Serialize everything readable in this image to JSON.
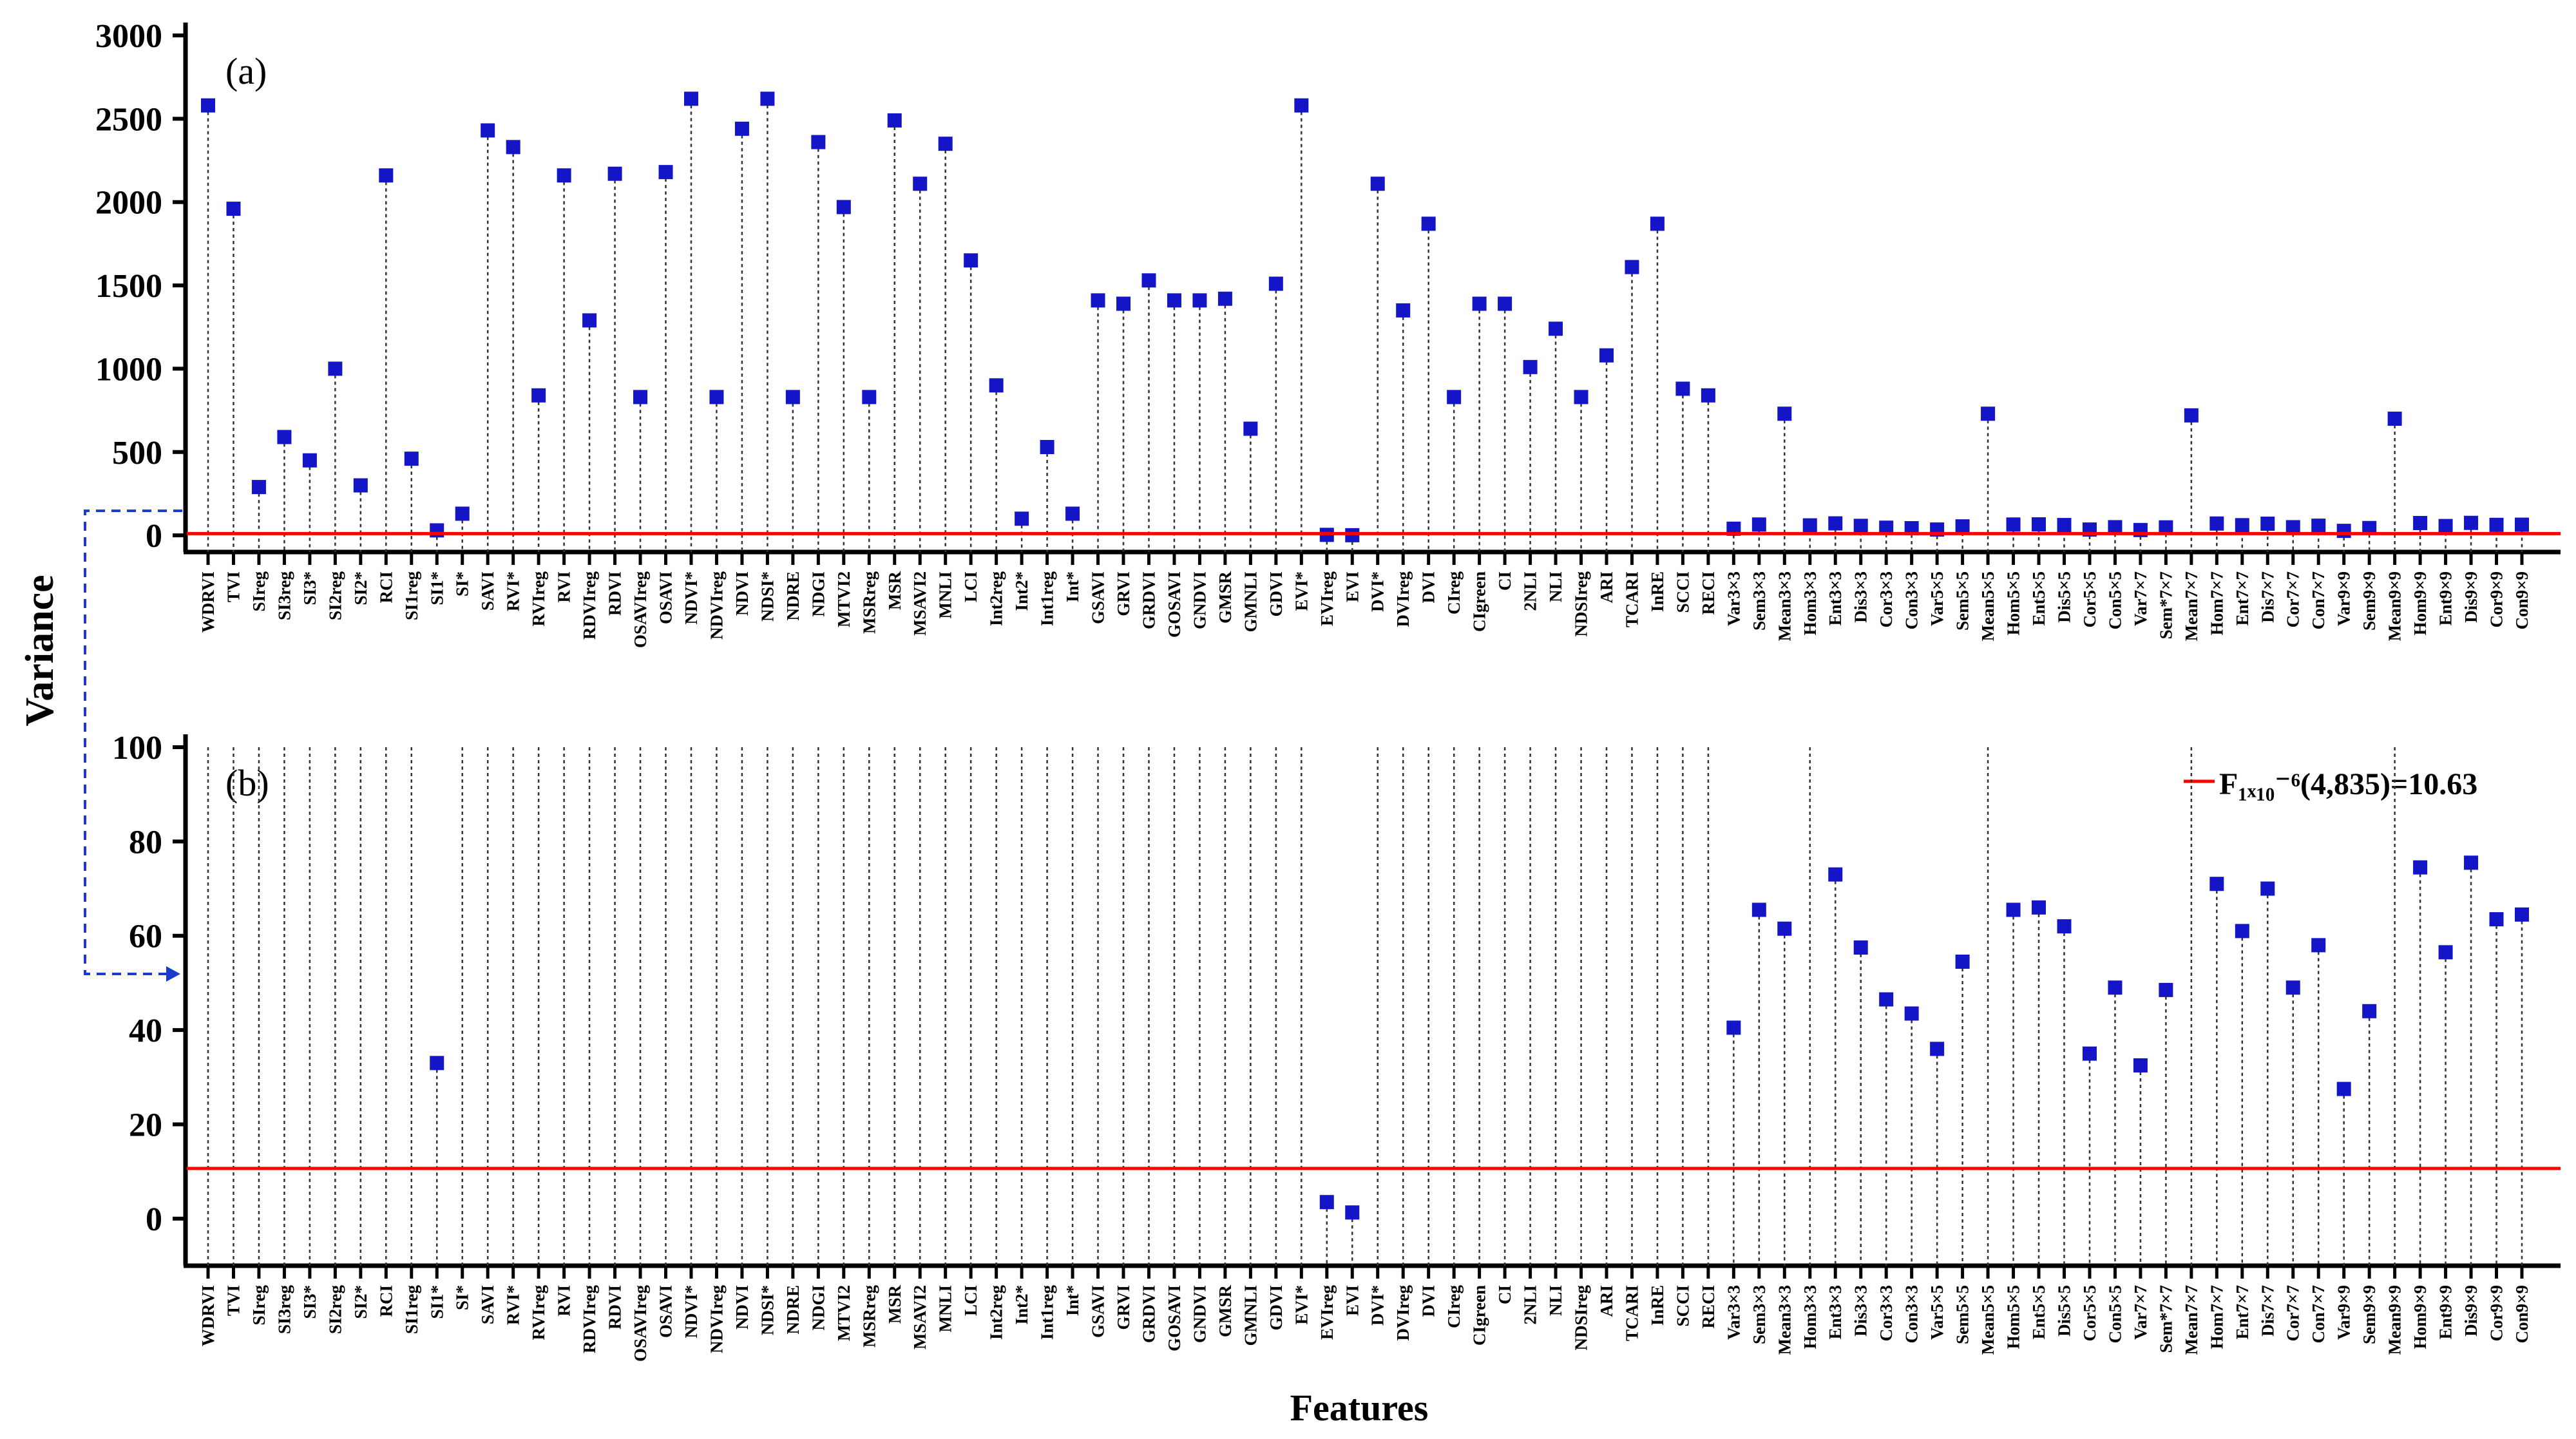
{
  "colors": {
    "marker": "#1515c8",
    "threshold": "#ff0000",
    "axis": "#000000",
    "stem": "#333333",
    "arrow": "#1a3ccc"
  },
  "chart_data": {
    "type": "scatter",
    "ylabel": "Variance",
    "xlabel": "Features",
    "categories": [
      "WDRVI",
      "TVI",
      "SIreg",
      "SI3reg",
      "SI3*",
      "SI2reg",
      "SI2*",
      "RCI",
      "SI1reg",
      "SI1*",
      "SI*",
      "SAVI",
      "RVI*",
      "RVIreg",
      "RVI",
      "RDVIreg",
      "RDVI",
      "OSAVIreg",
      "OSAVI",
      "NDVI*",
      "NDVIreg",
      "NDVI",
      "NDSI*",
      "NDRE",
      "NDGI",
      "MTVI2",
      "MSRreg",
      "MSR",
      "MSAVI2",
      "MNLI",
      "LCI",
      "Int2reg",
      "Int2*",
      "Int1reg",
      "Int*",
      "GSAVI",
      "GRVI",
      "GRDVI",
      "GOSAVI",
      "GNDVI",
      "GMSR",
      "GMNLI",
      "GDVI",
      "EVI*",
      "EVIreg",
      "EVI",
      "DVI*",
      "DVIreg",
      "DVI",
      "CIreg",
      "CIgreen",
      "CI",
      "2NLI",
      "NLI",
      "NDSIreg",
      "ARI",
      "TCARI",
      "InRE",
      "SCCI",
      "RECI",
      "Var3×3",
      "Sem3×3",
      "Mean3×3",
      "Hom3×3",
      "Ent3×3",
      "Dis3×3",
      "Cor3×3",
      "Con3×3",
      "Var5×5",
      "Sem5×5",
      "Mean5×5",
      "Hom5×5",
      "Ent5×5",
      "Dis5×5",
      "Cor5×5",
      "Con5×5",
      "Var7×7",
      "Sem*7×7",
      "Mean7×7",
      "Hom7×7",
      "Ent7×7",
      "Dis7×7",
      "Cor7×7",
      "Con7×7",
      "Var9×9",
      "Sem9×9",
      "Mean9×9",
      "Hom9×9",
      "Ent9×9",
      "Dis9×9",
      "Cor9×9",
      "Con9×9"
    ],
    "panels": [
      {
        "label": "(a)",
        "ylim": [
          -100,
          3000
        ],
        "yticks": [
          0,
          500,
          1000,
          1500,
          2000,
          2500,
          3000
        ],
        "threshold": 10.63,
        "values": [
          2580,
          1960,
          290,
          590,
          450,
          1000,
          300,
          2160,
          460,
          30,
          130,
          2430,
          2330,
          840,
          2160,
          1290,
          2170,
          830,
          2180,
          2620,
          830,
          2440,
          2620,
          830,
          2360,
          1970,
          830,
          2490,
          2110,
          2350,
          1650,
          900,
          100,
          530,
          130,
          1410,
          1390,
          1530,
          1410,
          1410,
          1420,
          640,
          1510,
          2580,
          3,
          1,
          2110,
          1350,
          1870,
          830,
          1390,
          1390,
          1010,
          1240,
          830,
          1080,
          1610,
          1870,
          880,
          840,
          40,
          65,
          730,
          60,
          72,
          57,
          46,
          43,
          35,
          54,
          730,
          65,
          66,
          62,
          35,
          49,
          32,
          48,
          720,
          71,
          61,
          70,
          49,
          58,
          27,
          44,
          700,
          74,
          56,
          75,
          63,
          64
        ]
      },
      {
        "label": "(b)",
        "ylim": [
          -10,
          100
        ],
        "yticks": [
          0,
          20,
          40,
          60,
          80,
          100
        ],
        "threshold": 10.63,
        "legend": "F₁ₓ₁₀⁻⁶(4,835)=10.63",
        "values": [
          null,
          null,
          null,
          null,
          null,
          null,
          null,
          null,
          null,
          33,
          null,
          null,
          null,
          null,
          null,
          null,
          null,
          null,
          null,
          null,
          null,
          null,
          null,
          null,
          null,
          null,
          null,
          null,
          null,
          null,
          null,
          null,
          null,
          null,
          null,
          null,
          null,
          null,
          null,
          null,
          null,
          null,
          null,
          null,
          3.5,
          1.3,
          null,
          null,
          null,
          null,
          null,
          null,
          null,
          null,
          null,
          null,
          null,
          null,
          null,
          null,
          40.5,
          65.5,
          61.5,
          null,
          73,
          57.5,
          46.5,
          43.5,
          36,
          54.5,
          null,
          65.5,
          66,
          62,
          35,
          49,
          32.5,
          48.5,
          null,
          71,
          61,
          70,
          49,
          58,
          27.5,
          44,
          null,
          74.5,
          56.5,
          75.5,
          63.5,
          64.5
        ]
      }
    ]
  }
}
